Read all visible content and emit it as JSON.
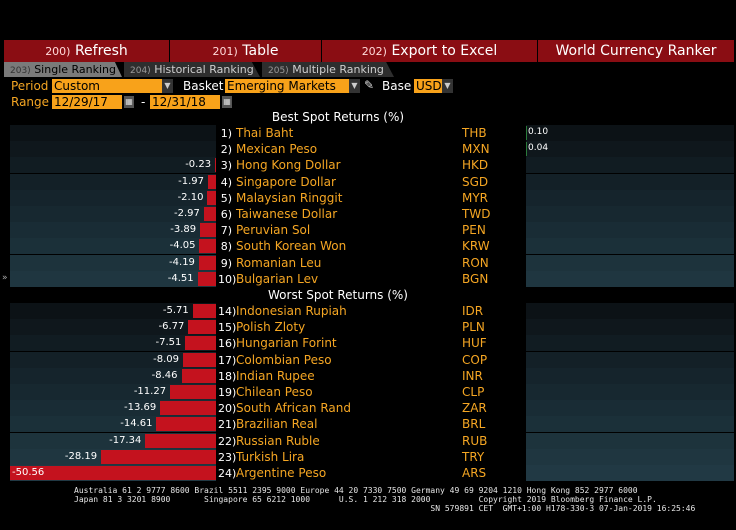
{
  "toolbar": {
    "refresh": {
      "num": "200)",
      "label": "Refresh"
    },
    "table": {
      "num": "201)",
      "label": "Table"
    },
    "export": {
      "num": "202)",
      "label": "Export to Excel"
    },
    "title": "World Currency Ranker"
  },
  "tabs": [
    {
      "num": "203)",
      "label": "Single Ranking"
    },
    {
      "num": "204)",
      "label": "Historical Ranking"
    },
    {
      "num": "205)",
      "label": "Multiple Ranking"
    }
  ],
  "controls": {
    "period_label": "Period",
    "period_value": "Custom",
    "basket_label": "Basket",
    "basket_value": "Emerging Markets",
    "base_label": "Base",
    "base_value": "USD",
    "range_label": "Range",
    "range_start": "12/29/17",
    "range_sep": "-",
    "range_end": "12/31/18"
  },
  "best_header": "Best Spot Returns (%)",
  "worst_header": "Worst Spot Returns (%)",
  "best": [
    {
      "rank": "1)",
      "name": "Thai Baht",
      "code": "THB",
      "value": 0.1,
      "label": "0.10"
    },
    {
      "rank": "2)",
      "name": "Mexican Peso",
      "code": "MXN",
      "value": 0.04,
      "label": "0.04"
    },
    {
      "rank": "3)",
      "name": "Hong Kong Dollar",
      "code": "HKD",
      "value": -0.23,
      "label": "-0.23"
    },
    {
      "rank": "4)",
      "name": "Singapore Dollar",
      "code": "SGD",
      "value": -1.97,
      "label": "-1.97"
    },
    {
      "rank": "5)",
      "name": "Malaysian Ringgit",
      "code": "MYR",
      "value": -2.1,
      "label": "-2.10"
    },
    {
      "rank": "6)",
      "name": "Taiwanese Dollar",
      "code": "TWD",
      "value": -2.97,
      "label": "-2.97"
    },
    {
      "rank": "7)",
      "name": "Peruvian Sol",
      "code": "PEN",
      "value": -3.89,
      "label": "-3.89"
    },
    {
      "rank": "8)",
      "name": "South Korean Won",
      "code": "KRW",
      "value": -4.05,
      "label": "-4.05"
    },
    {
      "rank": "9)",
      "name": "Romanian Leu",
      "code": "RON",
      "value": -4.19,
      "label": "-4.19"
    },
    {
      "rank": "10)",
      "name": "Bulgarian Lev",
      "code": "BGN",
      "value": -4.51,
      "label": "-4.51"
    }
  ],
  "worst": [
    {
      "rank": "14)",
      "name": "Indonesian Rupiah",
      "code": "IDR",
      "value": -5.71,
      "label": "-5.71"
    },
    {
      "rank": "15)",
      "name": "Polish Zloty",
      "code": "PLN",
      "value": -6.77,
      "label": "-6.77"
    },
    {
      "rank": "16)",
      "name": "Hungarian Forint",
      "code": "HUF",
      "value": -7.51,
      "label": "-7.51"
    },
    {
      "rank": "17)",
      "name": "Colombian Peso",
      "code": "COP",
      "value": -8.09,
      "label": "-8.09"
    },
    {
      "rank": "18)",
      "name": "Indian Rupee",
      "code": "INR",
      "value": -8.46,
      "label": "-8.46"
    },
    {
      "rank": "19)",
      "name": "Chilean Peso",
      "code": "CLP",
      "value": -11.27,
      "label": "-11.27"
    },
    {
      "rank": "20)",
      "name": "South African Rand",
      "code": "ZAR",
      "value": -13.69,
      "label": "-13.69"
    },
    {
      "rank": "21)",
      "name": "Brazilian Real",
      "code": "BRL",
      "value": -14.61,
      "label": "-14.61"
    },
    {
      "rank": "22)",
      "name": "Russian Ruble",
      "code": "RUB",
      "value": -17.34,
      "label": "-17.34"
    },
    {
      "rank": "23)",
      "name": "Turkish Lira",
      "code": "TRY",
      "value": -28.19,
      "label": "-28.19"
    },
    {
      "rank": "24)",
      "name": "Argentine Peso",
      "code": "ARS",
      "value": -50.56,
      "label": "-50.56"
    }
  ],
  "footer_line1": "Australia 61 2 9777 8600 Brazil 5511 2395 9000 Europe 44 20 7330 7500 Germany 49 69 9204 1210 Hong Kong 852 2977 6000",
  "footer_line2": "Japan 81 3 3201 8900       Singapore 65 6212 1000      U.S. 1 212 318 2000          Copyright 2019 Bloomberg Finance L.P.",
  "footer_line3": "                                                                          SN 579891 CET  GMT+1:00 H178-330-3 07-Jan-2019 16:25:46",
  "colors": {
    "bar": "#c4121e",
    "accent": "#f5a623",
    "toolbar": "#8a0d13"
  }
}
